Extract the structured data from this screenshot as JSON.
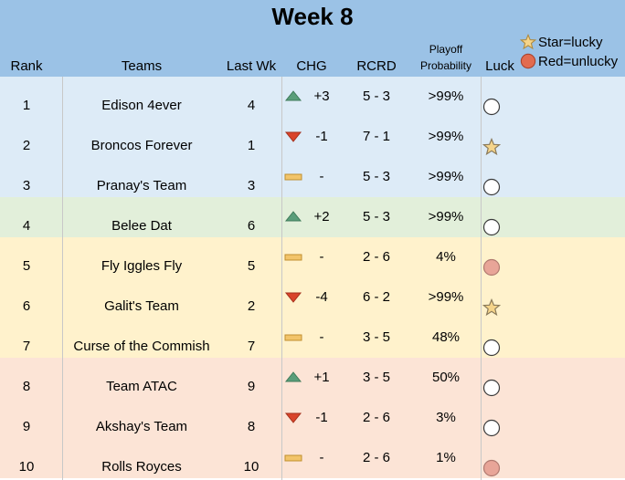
{
  "sheet": {
    "title": "Week 8",
    "headers": {
      "rank": "Rank",
      "teams": "Teams",
      "last_wk": "Last Wk",
      "chg": "CHG",
      "rcrd": "RCRD",
      "playoff_line1": "Playoff",
      "playoff_line2": "Probability",
      "luck": "Luck"
    },
    "legend": {
      "lucky": "Star=lucky",
      "unlucky": "Red=unlucky"
    },
    "colors": {
      "header": "#9bc2e6",
      "tier_blue": "#ddebf7",
      "tier_green": "#e2efda",
      "tier_yellow": "#fff2cc",
      "tier_red": "#fce4d6",
      "up": "#5a9e7a",
      "down": "#d9442b",
      "same": "#f2c46a",
      "unlucky": "#e8a598",
      "star": "#f5d48a"
    },
    "rows": [
      {
        "rank": "1",
        "team": "Edison 4ever",
        "last_wk": "4",
        "chg_dir": "up",
        "chg": "+3",
        "rcrd": "5 - 3",
        "playoff": ">99%",
        "luck": "neutral",
        "tier": "blue"
      },
      {
        "rank": "2",
        "team": "Broncos Forever",
        "last_wk": "1",
        "chg_dir": "down",
        "chg": "-1",
        "rcrd": "7 - 1",
        "playoff": ">99%",
        "luck": "lucky",
        "tier": "blue"
      },
      {
        "rank": "3",
        "team": "Pranay's Team",
        "last_wk": "3",
        "chg_dir": "same",
        "chg": "-",
        "rcrd": "5 - 3",
        "playoff": ">99%",
        "luck": "neutral",
        "tier": "blue"
      },
      {
        "rank": "4",
        "team": "Belee Dat",
        "last_wk": "6",
        "chg_dir": "up",
        "chg": "+2",
        "rcrd": "5 - 3",
        "playoff": ">99%",
        "luck": "neutral",
        "tier": "green"
      },
      {
        "rank": "5",
        "team": "Fly Iggles Fly",
        "last_wk": "5",
        "chg_dir": "same",
        "chg": "-",
        "rcrd": "2 - 6",
        "playoff": "4%",
        "luck": "unlucky",
        "tier": "yellow"
      },
      {
        "rank": "6",
        "team": "Galit's Team",
        "last_wk": "2",
        "chg_dir": "down",
        "chg": "-4",
        "rcrd": "6 - 2",
        "playoff": ">99%",
        "luck": "lucky",
        "tier": "yellow"
      },
      {
        "rank": "7",
        "team": "Curse of the Commish",
        "last_wk": "7",
        "chg_dir": "same",
        "chg": "-",
        "rcrd": "3 - 5",
        "playoff": "48%",
        "luck": "neutral",
        "tier": "yellow"
      },
      {
        "rank": "8",
        "team": "Team ATAC",
        "last_wk": "9",
        "chg_dir": "up",
        "chg": "+1",
        "rcrd": "3 - 5",
        "playoff": "50%",
        "luck": "neutral",
        "tier": "red"
      },
      {
        "rank": "9",
        "team": "Akshay's Team",
        "last_wk": "8",
        "chg_dir": "down",
        "chg": "-1",
        "rcrd": "2 - 6",
        "playoff": "3%",
        "luck": "neutral",
        "tier": "red"
      },
      {
        "rank": "10",
        "team": "Rolls Royces",
        "last_wk": "10",
        "chg_dir": "same",
        "chg": "-",
        "rcrd": "2 - 6",
        "playoff": "1%",
        "luck": "unlucky",
        "tier": "red"
      }
    ]
  }
}
